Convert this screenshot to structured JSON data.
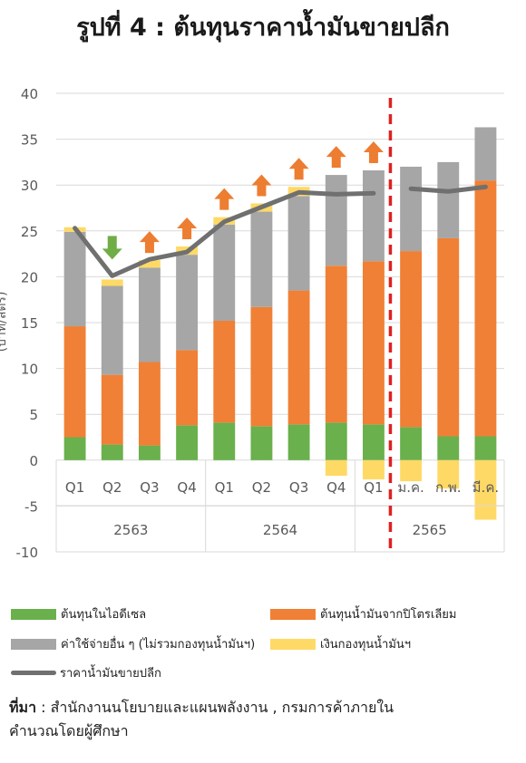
{
  "title": "รูปที่ 4 :  ต้นทุนราคาน้ำมันขายปลีก",
  "chart_data": {
    "type": "bar",
    "ylabel": "(บาท/ลิตร)",
    "ylim": [
      -10,
      40
    ],
    "yticks": [
      -10,
      -5,
      0,
      5,
      10,
      15,
      20,
      25,
      30,
      35,
      40
    ],
    "grid": true,
    "categories": [
      "Q1",
      "Q2",
      "Q3",
      "Q4",
      "Q1",
      "Q2",
      "Q3",
      "Q4",
      "Q1",
      "ม.ค.",
      "ก.พ.",
      "มี.ค."
    ],
    "groups": [
      {
        "label": "2563",
        "span": 4
      },
      {
        "label": "2564",
        "span": 4
      },
      {
        "label": "2565",
        "span": 4
      }
    ],
    "series": [
      {
        "name": "ต้นทุนในไอดีเซล",
        "color": "#6ab04c",
        "values": [
          2.5,
          1.7,
          1.6,
          3.8,
          4.1,
          3.7,
          3.9,
          4.1,
          3.9,
          3.6,
          2.6,
          2.6
        ]
      },
      {
        "name": "ต้นทุนน้ำมันจากปิโตรเลียม",
        "color": "#f08035",
        "values": [
          12.1,
          7.6,
          9.1,
          8.2,
          11.1,
          13.0,
          14.6,
          17.1,
          17.8,
          19.2,
          21.6,
          27.9
        ]
      },
      {
        "name": "ค่าใช้จ่ายอื่น ๆ (ไม่รวมกองทุนน้ำมันฯ)",
        "color": "#a6a6a6",
        "values": [
          10.3,
          9.7,
          10.3,
          10.4,
          10.5,
          10.4,
          10.3,
          9.9,
          9.9,
          9.2,
          8.3,
          5.8
        ]
      },
      {
        "name": "เงินกองทุนน้ำมันฯ",
        "color": "#ffd966",
        "values": [
          0.5,
          0.7,
          0.8,
          0.9,
          0.8,
          0.9,
          1.0,
          -1.7,
          -2.1,
          -2.3,
          -3.1,
          -6.5
        ]
      }
    ],
    "line": {
      "name": "ราคาน้ำมันขายปลีก",
      "color": "#707070",
      "values": [
        25.3,
        20.1,
        21.9,
        22.7,
        26.0,
        27.6,
        29.2,
        29.0,
        29.1,
        29.6,
        29.3,
        29.8
      ]
    },
    "arrows": {
      "color_up": "#ed7d31",
      "color_down": "#70ad47",
      "directions": [
        "none",
        "down",
        "up",
        "up",
        "up",
        "up",
        "up",
        "up",
        "up",
        "none",
        "none",
        "none"
      ]
    },
    "divider_after_index": 8,
    "divider_color": "#e02020"
  },
  "legend": [
    {
      "label": "ต้นทุนในไอดีเซล",
      "color": "#6ab04c",
      "kind": "box"
    },
    {
      "label": "ต้นทุนน้ำมันจากปิโตรเลียม",
      "color": "#f08035",
      "kind": "box"
    },
    {
      "label": "ค่าใช้จ่ายอื่น ๆ (ไม่รวมกองทุนน้ำมันฯ)",
      "color": "#a6a6a6",
      "kind": "box"
    },
    {
      "label": "เงินกองทุนน้ำมันฯ",
      "color": "#ffd966",
      "kind": "box"
    },
    {
      "label": "ราคาน้ำมันขายปลีก",
      "color": "#707070",
      "kind": "line"
    }
  ],
  "source": {
    "prefix": "ที่มา",
    "text": " : สำนักงานนโยบายและแผนพลังงาน , กรมการค้าภายใน",
    "line2": "คำนวณโดยผู้ศึกษา"
  }
}
